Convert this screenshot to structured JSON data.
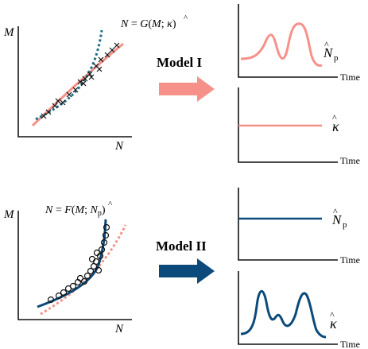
{
  "colors": {
    "salmon": "#f6918a",
    "navy": "#0b4a7a",
    "teal": "#1f6f86",
    "axis": "#111111"
  },
  "panel_top": {
    "y_axis_label": "M",
    "x_axis_label": "N",
    "equation": {
      "lhs": "N",
      "eq": " = ",
      "fn": "G",
      "open": "(",
      "arg1": "M",
      "sep": "; ",
      "arg2": "κ",
      "hat": "^",
      "close": ")"
    },
    "marker_symbol": "×"
  },
  "model_1": {
    "label": "Model I",
    "out_top_label": {
      "base": "N",
      "hat": "^",
      "sub": "p"
    },
    "out_top_axis": "Time",
    "out_bottom_label": {
      "base": "κ",
      "hat": "^"
    },
    "out_bottom_axis": "Time"
  },
  "panel_bottom": {
    "y_axis_label": "M",
    "x_axis_label": "N",
    "equation": {
      "lhs": "N",
      "eq": " = ",
      "fn": "F",
      "open": "(",
      "arg1": "M",
      "sep": "; ",
      "arg2": "N",
      "hat": "^",
      "sub": "p",
      "close": ")"
    },
    "marker_symbol": "○"
  },
  "model_2": {
    "label": "Model II",
    "out_top_label": {
      "base": "N",
      "hat": "^",
      "sub": "p"
    },
    "out_top_axis": "Time",
    "out_bottom_label": {
      "base": "κ",
      "hat": "^"
    },
    "out_bottom_axis": "Time"
  }
}
